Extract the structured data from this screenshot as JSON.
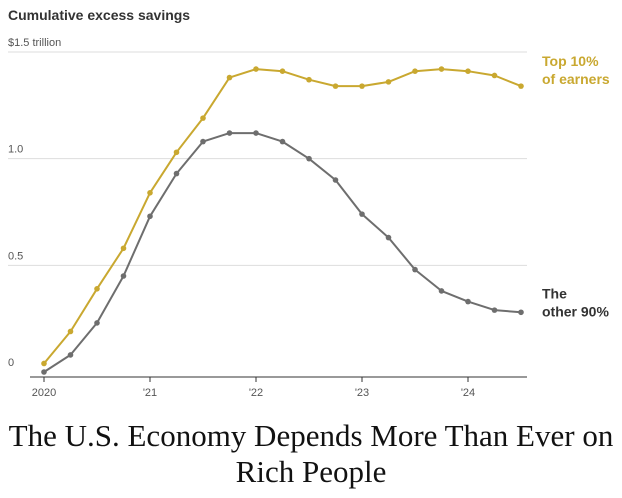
{
  "chart_data": {
    "type": "line",
    "title": "Cumulative excess savings",
    "xlabel": "",
    "ylabel": "",
    "x_ticks": [
      {
        "x": 2020.0,
        "label": "2020"
      },
      {
        "x": 2021.0,
        "label": "'21"
      },
      {
        "x": 2022.0,
        "label": "'22"
      },
      {
        "x": 2023.0,
        "label": "'23"
      },
      {
        "x": 2024.0,
        "label": "'24"
      }
    ],
    "y_ticks": [
      {
        "y": 0,
        "label": "0"
      },
      {
        "y": 0.5,
        "label": "0.5"
      },
      {
        "y": 1.0,
        "label": "1.0"
      },
      {
        "y": 1.5,
        "label": "$1.5 trillion"
      }
    ],
    "xlim": [
      2020.0,
      2024.5
    ],
    "ylim": [
      0,
      1.5
    ],
    "grid": "horizontal",
    "series": [
      {
        "name": "Top 10% of earners",
        "label_lines": [
          "Top 10%",
          "of earners"
        ],
        "color": "#c9a830",
        "x": [
          2020.0,
          2020.25,
          2020.5,
          2020.75,
          2021.0,
          2021.25,
          2021.5,
          2021.75,
          2022.0,
          2022.25,
          2022.5,
          2022.75,
          2023.0,
          2023.25,
          2023.5,
          2023.75,
          2024.0,
          2024.25,
          2024.5
        ],
        "values": [
          0.04,
          0.19,
          0.39,
          0.58,
          0.84,
          1.03,
          1.19,
          1.38,
          1.42,
          1.41,
          1.37,
          1.34,
          1.34,
          1.36,
          1.41,
          1.42,
          1.41,
          1.39,
          1.34
        ]
      },
      {
        "name": "The other 90%",
        "label_lines": [
          "The",
          "other 90%"
        ],
        "color": "#6e6e6e",
        "x": [
          2020.0,
          2020.25,
          2020.5,
          2020.75,
          2021.0,
          2021.25,
          2021.5,
          2021.75,
          2022.0,
          2022.25,
          2022.5,
          2022.75,
          2023.0,
          2023.25,
          2023.5,
          2023.75,
          2024.0,
          2024.25,
          2024.5
        ],
        "values": [
          0.0,
          0.08,
          0.23,
          0.45,
          0.73,
          0.93,
          1.08,
          1.12,
          1.12,
          1.08,
          1.0,
          0.9,
          0.74,
          0.63,
          0.48,
          0.38,
          0.33,
          0.29,
          0.28
        ]
      }
    ]
  },
  "headline": "The U.S. Economy Depends More Than Ever on Rich People"
}
